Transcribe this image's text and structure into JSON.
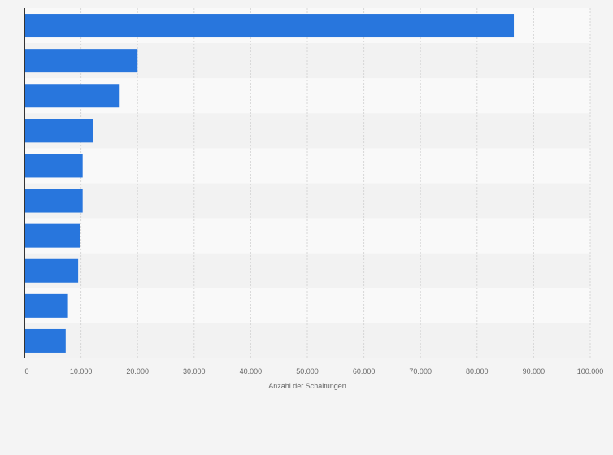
{
  "chart_data": {
    "type": "bar",
    "orientation": "horizontal",
    "categories": [
      "",
      "",
      "",
      "",
      "",
      "",
      "",
      "",
      "",
      ""
    ],
    "values": [
      86500,
      20000,
      16700,
      12200,
      10300,
      10300,
      9800,
      9500,
      7700,
      7300
    ],
    "xlabel": "Anzahl der Schaltungen",
    "ylabel": "",
    "xlim": [
      0,
      100000
    ],
    "x_ticks": [
      "0",
      "10.000",
      "20.000",
      "30.000",
      "40.000",
      "50.000",
      "60.000",
      "70.000",
      "80.000",
      "90.000",
      "100.000"
    ],
    "grid": "vertical dashed",
    "legend": "none",
    "colors": {
      "bar": "#2876dd",
      "band_light": "#f9f9f9",
      "band_dark": "#f2f2f2",
      "grid": "#d6d6d6",
      "axis": "#333333",
      "text": "#666666",
      "background": "#f4f4f4"
    }
  }
}
